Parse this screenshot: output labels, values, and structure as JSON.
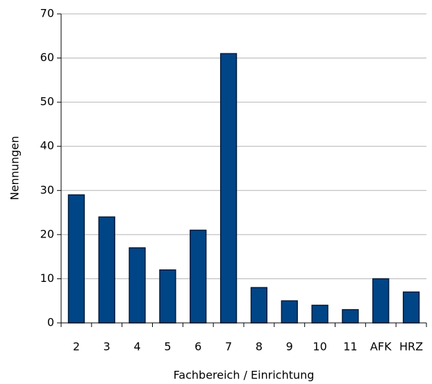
{
  "chart_data": {
    "type": "bar",
    "categories": [
      "2",
      "3",
      "4",
      "5",
      "6",
      "7",
      "8",
      "9",
      "10",
      "11",
      "AFK",
      "HRZ"
    ],
    "values": [
      29,
      24,
      17,
      12,
      21,
      61,
      8,
      5,
      4,
      3,
      10,
      7
    ],
    "color": "#004586",
    "xlabel": "Fachbereich / Einrichtung",
    "ylabel": "Nennungen",
    "ylim": [
      0,
      70
    ],
    "yticks": [
      0,
      10,
      20,
      30,
      40,
      50,
      60,
      70
    ],
    "grid": true
  }
}
